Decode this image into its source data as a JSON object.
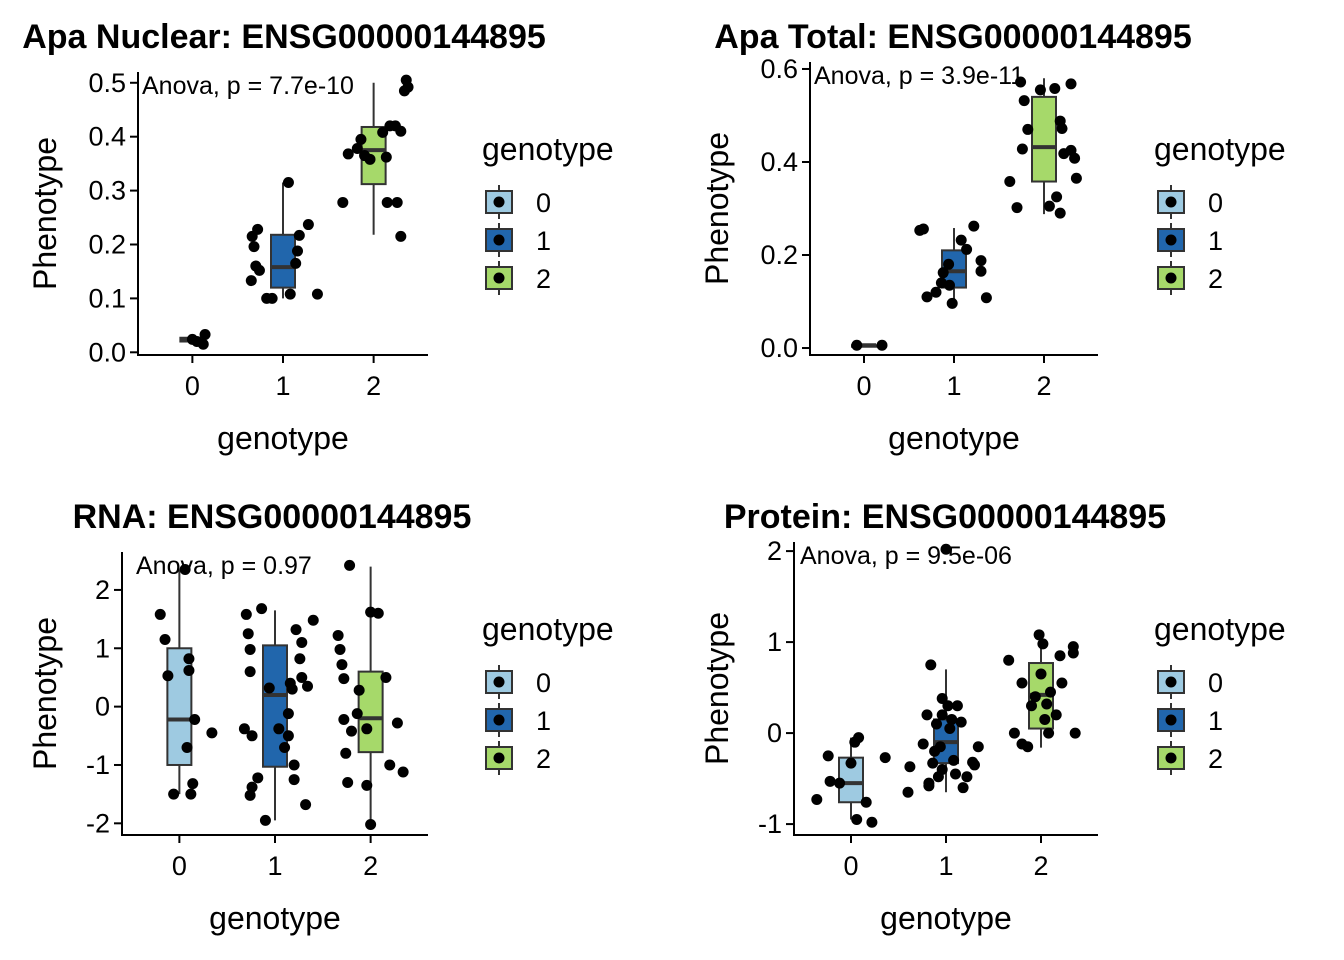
{
  "legend": {
    "title": "genotype",
    "entries": [
      "0",
      "1",
      "2"
    ],
    "colors": [
      "#9ecae1",
      "#2166ac",
      "#a6d96a"
    ],
    "placement": "right"
  },
  "chart_data": [
    {
      "type": "box",
      "title": "Apa Nuclear: ENSG00000144895",
      "xlabel": "genotype",
      "ylabel": "Phenotype",
      "annotation": "Anova, p = 7.7e-10",
      "categories": [
        "0",
        "1",
        "2"
      ],
      "ylim": [
        -0.005,
        0.52
      ],
      "yticks": [
        0.0,
        0.1,
        0.2,
        0.3,
        0.4,
        0.5
      ],
      "ytick_labels": [
        "0.0",
        "0.1",
        "0.2",
        "0.3",
        "0.4",
        "0.5"
      ],
      "boxes": [
        {
          "category": "0",
          "q1": 0.02,
          "median": 0.024,
          "q3": 0.027,
          "whisker_low": 0.015,
          "whisker_high": 0.033
        },
        {
          "category": "1",
          "q1": 0.12,
          "median": 0.158,
          "q3": 0.218,
          "whisker_low": 0.1,
          "whisker_high": 0.315
        },
        {
          "category": "2",
          "q1": 0.312,
          "median": 0.375,
          "q3": 0.418,
          "whisker_low": 0.218,
          "whisker_high": 0.5
        }
      ],
      "points": [
        {
          "x": 0.0,
          "y": 0.024
        },
        {
          "x": 0.05,
          "y": 0.02
        },
        {
          "x": 0.12,
          "y": 0.015
        },
        {
          "x": 0.14,
          "y": 0.033
        },
        {
          "x": 0.66,
          "y": 0.215
        },
        {
          "x": 0.72,
          "y": 0.228
        },
        {
          "x": 0.68,
          "y": 0.196
        },
        {
          "x": 0.7,
          "y": 0.16
        },
        {
          "x": 0.74,
          "y": 0.152
        },
        {
          "x": 0.65,
          "y": 0.133
        },
        {
          "x": 0.82,
          "y": 0.1
        },
        {
          "x": 0.88,
          "y": 0.1
        },
        {
          "x": 1.06,
          "y": 0.315
        },
        {
          "x": 1.16,
          "y": 0.188
        },
        {
          "x": 1.14,
          "y": 0.165
        },
        {
          "x": 1.18,
          "y": 0.217
        },
        {
          "x": 1.28,
          "y": 0.237
        },
        {
          "x": 1.08,
          "y": 0.108
        },
        {
          "x": 1.38,
          "y": 0.108
        },
        {
          "x": 1.66,
          "y": 0.278
        },
        {
          "x": 1.72,
          "y": 0.368
        },
        {
          "x": 1.82,
          "y": 0.378
        },
        {
          "x": 1.86,
          "y": 0.395
        },
        {
          "x": 1.9,
          "y": 0.365
        },
        {
          "x": 1.96,
          "y": 0.358
        },
        {
          "x": 2.1,
          "y": 0.408
        },
        {
          "x": 2.18,
          "y": 0.42
        },
        {
          "x": 2.24,
          "y": 0.42
        },
        {
          "x": 2.3,
          "y": 0.41
        },
        {
          "x": 2.14,
          "y": 0.362
        },
        {
          "x": 2.15,
          "y": 0.278
        },
        {
          "x": 2.26,
          "y": 0.278
        },
        {
          "x": 2.3,
          "y": 0.215
        },
        {
          "x": 2.34,
          "y": 0.485
        },
        {
          "x": 2.38,
          "y": 0.492
        },
        {
          "x": 2.36,
          "y": 0.505
        }
      ]
    },
    {
      "type": "box",
      "title": "Apa Total: ENSG00000144895",
      "xlabel": "genotype",
      "ylabel": "Phenotype",
      "annotation": "Anova, p = 3.9e-11",
      "categories": [
        "0",
        "1",
        "2"
      ],
      "ylim": [
        -0.015,
        0.615
      ],
      "yticks": [
        0.0,
        0.2,
        0.4,
        0.6
      ],
      "ytick_labels": [
        "0.0",
        "0.2",
        "0.4",
        "0.6"
      ],
      "boxes": [
        {
          "category": "0",
          "q1": 0.006,
          "median": 0.006,
          "q3": 0.006,
          "whisker_low": 0.006,
          "whisker_high": 0.006
        },
        {
          "category": "1",
          "q1": 0.13,
          "median": 0.165,
          "q3": 0.21,
          "whisker_low": 0.098,
          "whisker_high": 0.258
        },
        {
          "category": "2",
          "q1": 0.358,
          "median": 0.432,
          "q3": 0.54,
          "whisker_low": 0.288,
          "whisker_high": 0.58
        }
      ],
      "points": [
        {
          "x": -0.08,
          "y": 0.006
        },
        {
          "x": 0.2,
          "y": 0.006
        },
        {
          "x": 0.62,
          "y": 0.253
        },
        {
          "x": 0.66,
          "y": 0.256
        },
        {
          "x": 0.7,
          "y": 0.11
        },
        {
          "x": 0.8,
          "y": 0.12
        },
        {
          "x": 0.86,
          "y": 0.14
        },
        {
          "x": 0.88,
          "y": 0.162
        },
        {
          "x": 0.94,
          "y": 0.18
        },
        {
          "x": 0.95,
          "y": 0.135
        },
        {
          "x": 0.98,
          "y": 0.096
        },
        {
          "x": 1.08,
          "y": 0.232
        },
        {
          "x": 1.14,
          "y": 0.212
        },
        {
          "x": 1.22,
          "y": 0.262
        },
        {
          "x": 1.3,
          "y": 0.188
        },
        {
          "x": 1.3,
          "y": 0.165
        },
        {
          "x": 1.36,
          "y": 0.108
        },
        {
          "x": 1.62,
          "y": 0.358
        },
        {
          "x": 1.7,
          "y": 0.302
        },
        {
          "x": 1.74,
          "y": 0.572
        },
        {
          "x": 1.78,
          "y": 0.532
        },
        {
          "x": 1.82,
          "y": 0.47
        },
        {
          "x": 1.76,
          "y": 0.428
        },
        {
          "x": 1.96,
          "y": 0.555
        },
        {
          "x": 2.12,
          "y": 0.558
        },
        {
          "x": 2.18,
          "y": 0.488
        },
        {
          "x": 2.2,
          "y": 0.472
        },
        {
          "x": 2.3,
          "y": 0.568
        },
        {
          "x": 2.22,
          "y": 0.418
        },
        {
          "x": 2.3,
          "y": 0.425
        },
        {
          "x": 2.34,
          "y": 0.408
        },
        {
          "x": 2.36,
          "y": 0.365
        },
        {
          "x": 2.06,
          "y": 0.305
        },
        {
          "x": 2.14,
          "y": 0.325
        },
        {
          "x": 2.18,
          "y": 0.29
        }
      ]
    },
    {
      "type": "box",
      "title": "RNA: ENSG00000144895",
      "xlabel": "genotype",
      "ylabel": "Phenotype",
      "annotation": "Anova, p = 0.97",
      "categories": [
        "0",
        "1",
        "2"
      ],
      "ylim": [
        -2.2,
        2.65
      ],
      "yticks": [
        -2,
        -1,
        0,
        1,
        2
      ],
      "ytick_labels": [
        "-2",
        "-1",
        "0",
        "1",
        "2"
      ],
      "boxes": [
        {
          "category": "0",
          "q1": -1.0,
          "median": -0.22,
          "q3": 1.0,
          "whisker_low": -1.5,
          "whisker_high": 2.35
        },
        {
          "category": "1",
          "q1": -1.03,
          "median": 0.2,
          "q3": 1.05,
          "whisker_low": -1.95,
          "whisker_high": 1.65
        },
        {
          "category": "2",
          "q1": -0.78,
          "median": -0.2,
          "q3": 0.6,
          "whisker_low": -2.0,
          "whisker_high": 2.4
        }
      ],
      "points": [
        {
          "x": -0.2,
          "y": 1.58
        },
        {
          "x": -0.15,
          "y": 1.15
        },
        {
          "x": -0.12,
          "y": 0.53
        },
        {
          "x": -0.06,
          "y": -1.5
        },
        {
          "x": 0.06,
          "y": 2.35
        },
        {
          "x": 0.1,
          "y": 0.62
        },
        {
          "x": 0.1,
          "y": 0.82
        },
        {
          "x": 0.16,
          "y": -0.22
        },
        {
          "x": 0.08,
          "y": -0.7
        },
        {
          "x": 0.14,
          "y": -1.32
        },
        {
          "x": 0.12,
          "y": -1.5
        },
        {
          "x": 0.34,
          "y": -0.45
        },
        {
          "x": 0.7,
          "y": 1.58
        },
        {
          "x": 0.72,
          "y": 1.25
        },
        {
          "x": 0.74,
          "y": 0.98
        },
        {
          "x": 0.74,
          "y": 0.6
        },
        {
          "x": 0.68,
          "y": -0.38
        },
        {
          "x": 0.76,
          "y": -0.5
        },
        {
          "x": 0.76,
          "y": -1.38
        },
        {
          "x": 0.74,
          "y": -1.52
        },
        {
          "x": 0.82,
          "y": -1.22
        },
        {
          "x": 0.86,
          "y": 1.68
        },
        {
          "x": 0.9,
          "y": -1.95
        },
        {
          "x": 0.94,
          "y": 0.32
        },
        {
          "x": 1.04,
          "y": -0.38
        },
        {
          "x": 1.1,
          "y": -0.7
        },
        {
          "x": 1.14,
          "y": -0.5
        },
        {
          "x": 1.14,
          "y": -0.12
        },
        {
          "x": 1.16,
          "y": 0.4
        },
        {
          "x": 1.18,
          "y": 0.3
        },
        {
          "x": 1.2,
          "y": -1.0
        },
        {
          "x": 1.2,
          "y": -1.25
        },
        {
          "x": 1.22,
          "y": 1.32
        },
        {
          "x": 1.26,
          "y": 0.82
        },
        {
          "x": 1.28,
          "y": 0.5
        },
        {
          "x": 1.28,
          "y": 1.1
        },
        {
          "x": 1.32,
          "y": -1.68
        },
        {
          "x": 1.34,
          "y": 0.35
        },
        {
          "x": 1.4,
          "y": 1.48
        },
        {
          "x": 1.66,
          "y": 1.22
        },
        {
          "x": 1.68,
          "y": 0.98
        },
        {
          "x": 1.7,
          "y": 0.72
        },
        {
          "x": 1.72,
          "y": 0.48
        },
        {
          "x": 1.72,
          "y": -0.22
        },
        {
          "x": 1.74,
          "y": -0.8
        },
        {
          "x": 1.76,
          "y": -1.3
        },
        {
          "x": 1.78,
          "y": 2.42
        },
        {
          "x": 1.8,
          "y": -0.42
        },
        {
          "x": 1.86,
          "y": -0.12
        },
        {
          "x": 1.88,
          "y": 0.28
        },
        {
          "x": 1.96,
          "y": -1.35
        },
        {
          "x": 1.96,
          "y": -0.38
        },
        {
          "x": 2.0,
          "y": 1.62
        },
        {
          "x": 2.0,
          "y": -2.02
        },
        {
          "x": 2.08,
          "y": 1.6
        },
        {
          "x": 2.16,
          "y": 0.5
        },
        {
          "x": 2.2,
          "y": -1.0
        },
        {
          "x": 2.28,
          "y": -0.28
        },
        {
          "x": 2.34,
          "y": -1.12
        }
      ]
    },
    {
      "type": "box",
      "title": "Protein: ENSG00000144895",
      "xlabel": "genotype",
      "ylabel": "Phenotype",
      "annotation": "Anova, p = 9.5e-06",
      "categories": [
        "0",
        "1",
        "2"
      ],
      "ylim": [
        -1.12,
        2.1
      ],
      "yticks": [
        -1,
        0,
        1,
        2
      ],
      "ytick_labels": [
        "-1",
        "0",
        "1",
        "2"
      ],
      "boxes": [
        {
          "category": "0",
          "q1": -0.76,
          "median": -0.55,
          "q3": -0.27,
          "whisker_low": -0.95,
          "whisker_high": -0.05
        },
        {
          "category": "1",
          "q1": -0.33,
          "median": -0.1,
          "q3": 0.15,
          "whisker_low": -0.65,
          "whisker_high": 0.7
        },
        {
          "category": "2",
          "q1": 0.05,
          "median": 0.42,
          "q3": 0.77,
          "whisker_low": -0.16,
          "whisker_high": 1.05
        }
      ],
      "points": [
        {
          "x": -0.36,
          "y": -0.73
        },
        {
          "x": -0.24,
          "y": -0.25
        },
        {
          "x": -0.22,
          "y": -0.53
        },
        {
          "x": -0.12,
          "y": -0.55
        },
        {
          "x": 0.0,
          "y": -0.33
        },
        {
          "x": 0.04,
          "y": -0.1
        },
        {
          "x": 0.08,
          "y": -0.05
        },
        {
          "x": 0.06,
          "y": -0.95
        },
        {
          "x": 0.16,
          "y": -0.76
        },
        {
          "x": 0.22,
          "y": -0.98
        },
        {
          "x": 0.36,
          "y": -0.27
        },
        {
          "x": 0.6,
          "y": -0.65
        },
        {
          "x": 0.62,
          "y": -0.37
        },
        {
          "x": 0.76,
          "y": -0.12
        },
        {
          "x": 0.8,
          "y": 0.2
        },
        {
          "x": 0.82,
          "y": -0.55
        },
        {
          "x": 0.82,
          "y": -0.58
        },
        {
          "x": 0.84,
          "y": 0.75
        },
        {
          "x": 0.86,
          "y": -0.33
        },
        {
          "x": 0.88,
          "y": -0.2
        },
        {
          "x": 0.9,
          "y": 0.1
        },
        {
          "x": 0.92,
          "y": -0.48
        },
        {
          "x": 0.94,
          "y": -0.15
        },
        {
          "x": 0.96,
          "y": 0.38
        },
        {
          "x": 0.96,
          "y": -0.4
        },
        {
          "x": 1.0,
          "y": 2.02
        },
        {
          "x": 1.02,
          "y": 0.3
        },
        {
          "x": 1.04,
          "y": 0.05
        },
        {
          "x": 1.06,
          "y": 0.15
        },
        {
          "x": 1.08,
          "y": -0.3
        },
        {
          "x": 1.1,
          "y": -0.45
        },
        {
          "x": 1.12,
          "y": 0.3
        },
        {
          "x": 1.16,
          "y": 0.12
        },
        {
          "x": 1.18,
          "y": -0.6
        },
        {
          "x": 1.22,
          "y": -0.48
        },
        {
          "x": 1.28,
          "y": -0.32
        },
        {
          "x": 1.3,
          "y": -0.35
        },
        {
          "x": 1.34,
          "y": -0.15
        },
        {
          "x": 0.96,
          "y": 0.2
        },
        {
          "x": 1.66,
          "y": 0.8
        },
        {
          "x": 1.72,
          "y": 0.0
        },
        {
          "x": 1.8,
          "y": 0.55
        },
        {
          "x": 1.8,
          "y": -0.12
        },
        {
          "x": 1.86,
          "y": -0.15
        },
        {
          "x": 1.9,
          "y": 0.3
        },
        {
          "x": 1.94,
          "y": 0.4
        },
        {
          "x": 1.98,
          "y": 1.08
        },
        {
          "x": 2.0,
          "y": 0.65
        },
        {
          "x": 2.02,
          "y": 0.98
        },
        {
          "x": 2.04,
          "y": 0.15
        },
        {
          "x": 2.06,
          "y": 0.32
        },
        {
          "x": 2.08,
          "y": 0.0
        },
        {
          "x": 2.1,
          "y": 0.45
        },
        {
          "x": 2.16,
          "y": 0.2
        },
        {
          "x": 2.2,
          "y": 0.85
        },
        {
          "x": 2.22,
          "y": 0.55
        },
        {
          "x": 2.34,
          "y": 0.95
        },
        {
          "x": 2.34,
          "y": 0.88
        },
        {
          "x": 2.36,
          "y": 0.0
        }
      ]
    }
  ]
}
